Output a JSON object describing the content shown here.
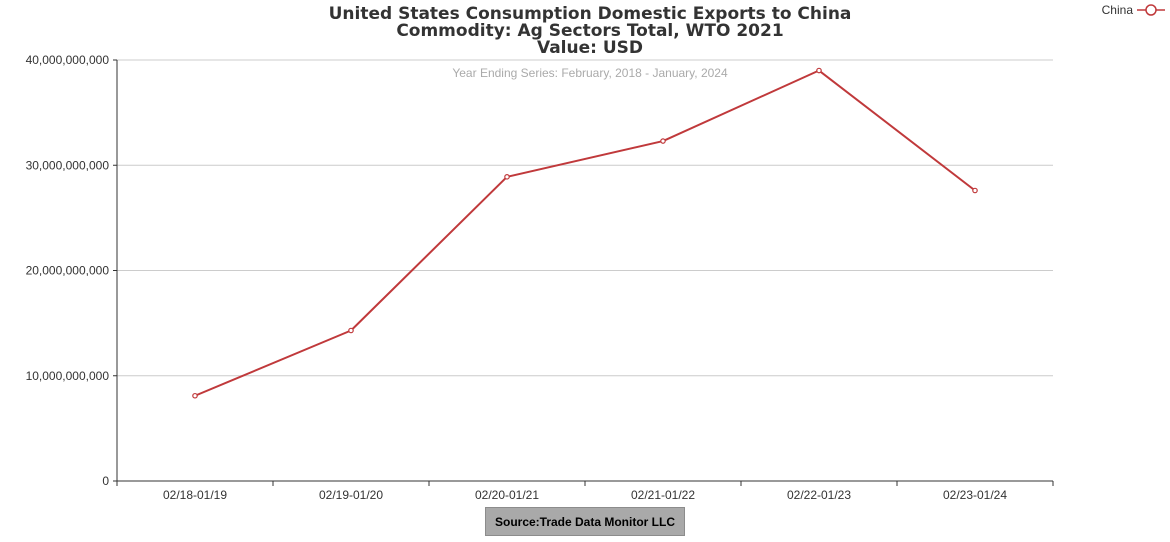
{
  "chart_data": {
    "type": "line",
    "title_lines": [
      "United States Consumption Domestic Exports to China",
      "Commodity: Ag Sectors Total, WTO 2021",
      "Value: USD"
    ],
    "subtitle": "Year Ending Series: February, 2018 - January, 2024",
    "categories": [
      "02/18-01/19",
      "02/19-01/20",
      "02/20-01/21",
      "02/21-01/22",
      "02/22-01/23",
      "02/23-01/24"
    ],
    "series": [
      {
        "name": "China",
        "color": "#c0393b",
        "values": [
          8100000000,
          14300000000,
          28900000000,
          32300000000,
          39000000000,
          27600000000
        ]
      }
    ],
    "y_ticks": [
      0,
      10000000000,
      20000000000,
      30000000000,
      40000000000
    ],
    "y_tick_labels": [
      "0",
      "10,000,000,000",
      "20,000,000,000",
      "30,000,000,000",
      "40,000,000,000"
    ],
    "ylim": [
      0,
      40000000000
    ],
    "grid": true,
    "legend_position": "top-right"
  },
  "source_label": "Source:Trade Data Monitor LLC"
}
